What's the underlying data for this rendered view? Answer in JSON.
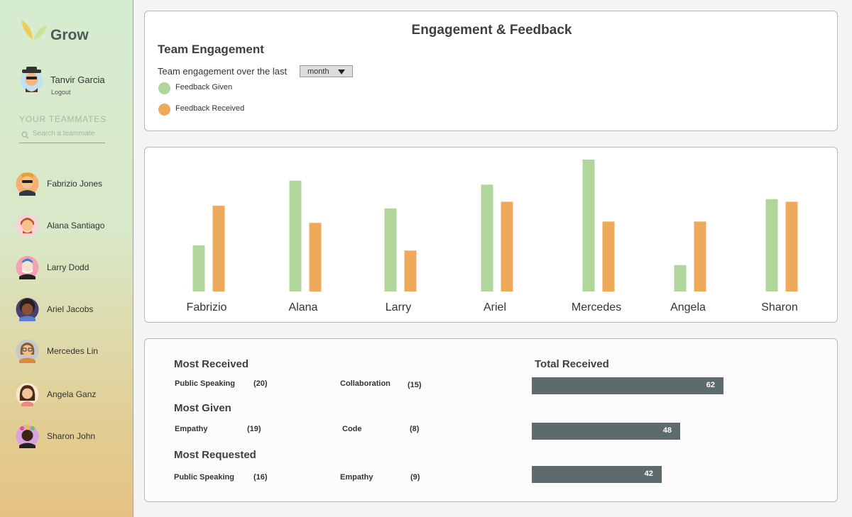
{
  "app": {
    "name": "Grow"
  },
  "user": {
    "name": "Tanvir Garcia",
    "logout": "Logout"
  },
  "sidebar": {
    "section_title": "YOUR TEAMMATES",
    "search_placeholder": "Search a teammate",
    "teammates": [
      {
        "name": "Fabrizio Jones"
      },
      {
        "name": "Alana Santiago"
      },
      {
        "name": "Larry Dodd"
      },
      {
        "name": "Ariel Jacobs"
      },
      {
        "name": "Mercedes Lin"
      },
      {
        "name": "Angela Ganz"
      },
      {
        "name": "Sharon John"
      }
    ]
  },
  "header": {
    "title": "Engagement & Feedback",
    "subtitle": "Team Engagement",
    "period_label": "Team engagement over the last",
    "period_value": "month"
  },
  "legend": {
    "given": {
      "label": "Feedback Given",
      "color": "#b0d69b"
    },
    "received": {
      "label": "Feedback Received",
      "color": "#ecaa5a"
    }
  },
  "chart_data": {
    "type": "bar",
    "categories": [
      "Fabrizio",
      "Alana",
      "Larry",
      "Ariel",
      "Mercedes",
      "Angela",
      "Sharon"
    ],
    "series": [
      {
        "name": "Feedback Given",
        "values": [
          35,
          84,
          63,
          81,
          100,
          20,
          70
        ]
      },
      {
        "name": "Feedback Received",
        "values": [
          65,
          52,
          31,
          68,
          53,
          53,
          68
        ]
      }
    ],
    "ylim": [
      0,
      100
    ]
  },
  "stats": {
    "most_received": {
      "title": "Most Received",
      "items": [
        {
          "label": "Public Speaking",
          "count": "(20)"
        },
        {
          "label": "Collaboration",
          "count": "(15)"
        }
      ]
    },
    "most_given": {
      "title": "Most Given",
      "items": [
        {
          "label": "Empathy",
          "count": "(19)"
        },
        {
          "label": "Code",
          "count": "(8)"
        }
      ]
    },
    "most_requested": {
      "title": "Most Requested",
      "items": [
        {
          "label": "Public Speaking",
          "count": "(16)"
        },
        {
          "label": "Empathy",
          "count": "(9)"
        }
      ]
    },
    "total_received": {
      "title": "Total Received",
      "values": [
        62,
        48,
        42
      ],
      "labels": [
        "62",
        "48",
        "42"
      ]
    }
  }
}
